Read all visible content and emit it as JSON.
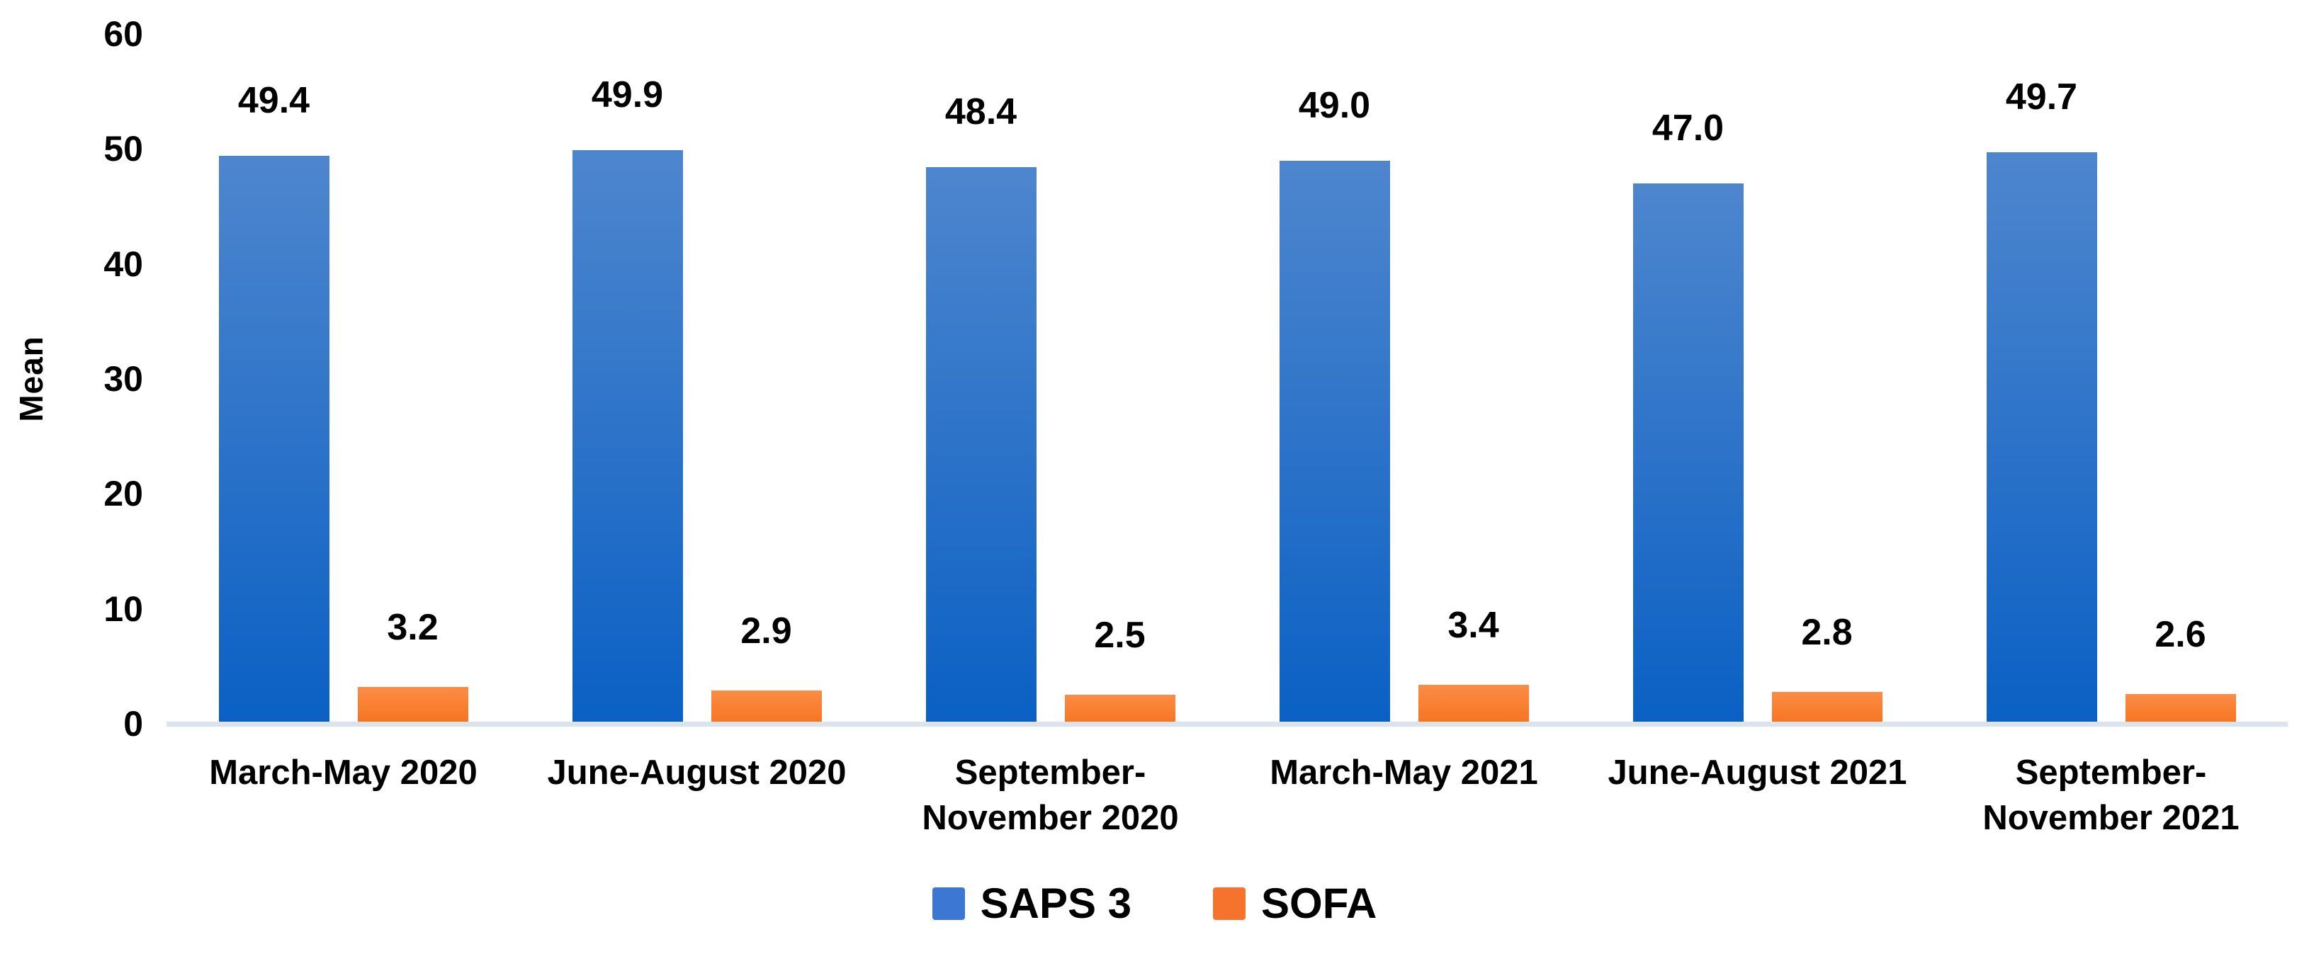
{
  "chart_data": {
    "type": "bar",
    "title": "",
    "xlabel": "",
    "ylabel": "Mean",
    "categories": [
      "March-May 2020",
      "June-August 2020",
      "September-November 2020",
      "March-May 2021",
      "June-August 2021",
      "September-November 2021"
    ],
    "series": [
      {
        "name": "SAPS 3",
        "values": [
          49.4,
          49.9,
          48.4,
          49.0,
          47.0,
          49.7
        ],
        "labels": [
          "49.4",
          "49.9",
          "48.4",
          "49.0",
          "47.0",
          "49.7"
        ],
        "color_top": "#4e86ce",
        "color_bottom": "#0a60c4",
        "legend_color": "#3b77d3"
      },
      {
        "name": "SOFA",
        "values": [
          3.2,
          2.9,
          2.5,
          3.4,
          2.8,
          2.6
        ],
        "labels": [
          "3.2",
          "2.9",
          "2.5",
          "3.4",
          "2.8",
          "2.6"
        ],
        "color_top": "#fb8c46",
        "color_bottom": "#f7741f",
        "legend_color": "#f5732d"
      }
    ],
    "y_axis": {
      "min": 0,
      "max": 60,
      "step": 10,
      "ticks": [
        60,
        50,
        40,
        30,
        20,
        10,
        0
      ]
    },
    "grid": false,
    "legend_position": "bottom",
    "axis_line_color": "#dde3eb",
    "background_color": "#ffffff",
    "text_color": "#000000"
  }
}
